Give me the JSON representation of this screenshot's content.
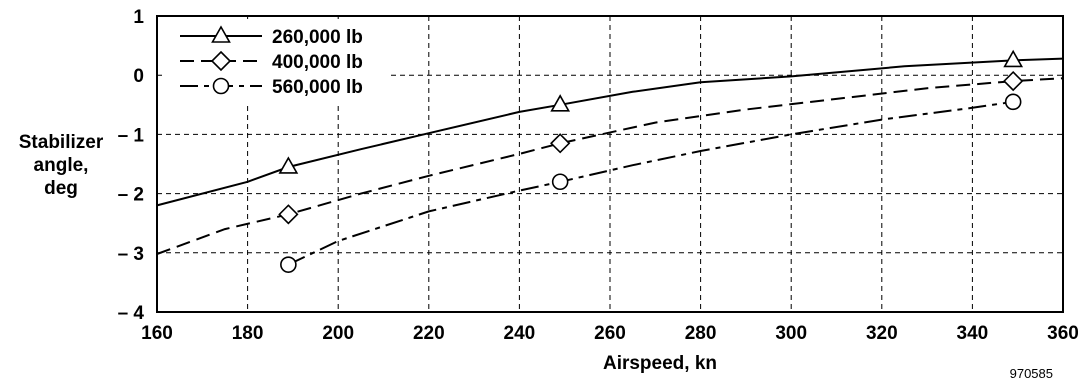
{
  "chart_data": {
    "type": "line",
    "title": "",
    "xlabel": "Airspeed, kn",
    "ylabel_lines": [
      "Stabilizer",
      "angle,",
      "deg"
    ],
    "xlim": [
      160,
      360
    ],
    "ylim": [
      -4,
      1
    ],
    "x_ticks": [
      160,
      180,
      200,
      220,
      240,
      260,
      280,
      300,
      320,
      340,
      360
    ],
    "y_ticks": [
      1,
      0,
      -1,
      -2,
      -3,
      -4
    ],
    "y_tick_labels": [
      "1",
      "0",
      "– 1",
      "– 2",
      "– 3",
      "– 4"
    ],
    "grid": true,
    "legend_position": "top-left",
    "series": [
      {
        "name": "260,000 lb",
        "marker": "triangle",
        "line_style": "solid",
        "x": [
          160,
          180,
          189,
          205,
          220,
          240,
          249,
          265,
          280,
          300,
          325,
          349,
          360
        ],
        "y": [
          -2.2,
          -1.8,
          -1.55,
          -1.25,
          -0.98,
          -0.62,
          -0.5,
          -0.28,
          -0.12,
          -0.02,
          0.15,
          0.25,
          0.28
        ],
        "marker_x": [
          189,
          249,
          349
        ],
        "marker_y": [
          -1.55,
          -0.5,
          0.25
        ]
      },
      {
        "name": "400,000 lb",
        "marker": "diamond",
        "line_style": "dashed",
        "x": [
          160,
          175,
          189,
          205,
          220,
          240,
          249,
          270,
          290,
          310,
          330,
          349,
          360
        ],
        "y": [
          -3.02,
          -2.6,
          -2.35,
          -2.0,
          -1.7,
          -1.33,
          -1.15,
          -0.8,
          -0.58,
          -0.4,
          -0.22,
          -0.1,
          -0.05
        ],
        "marker_x": [
          189,
          249,
          349
        ],
        "marker_y": [
          -2.35,
          -1.15,
          -0.1
        ]
      },
      {
        "name": "560,000 lb",
        "marker": "circle",
        "line_style": "dash-dot",
        "x": [
          189,
          200,
          220,
          240,
          249,
          265,
          280,
          300,
          320,
          340,
          349
        ],
        "y": [
          -3.2,
          -2.8,
          -2.3,
          -1.95,
          -1.8,
          -1.52,
          -1.28,
          -1.0,
          -0.75,
          -0.55,
          -0.45
        ],
        "marker_x": [
          189,
          249,
          349
        ],
        "marker_y": [
          -3.2,
          -1.8,
          -0.45
        ]
      }
    ],
    "figure_id": "970585"
  }
}
